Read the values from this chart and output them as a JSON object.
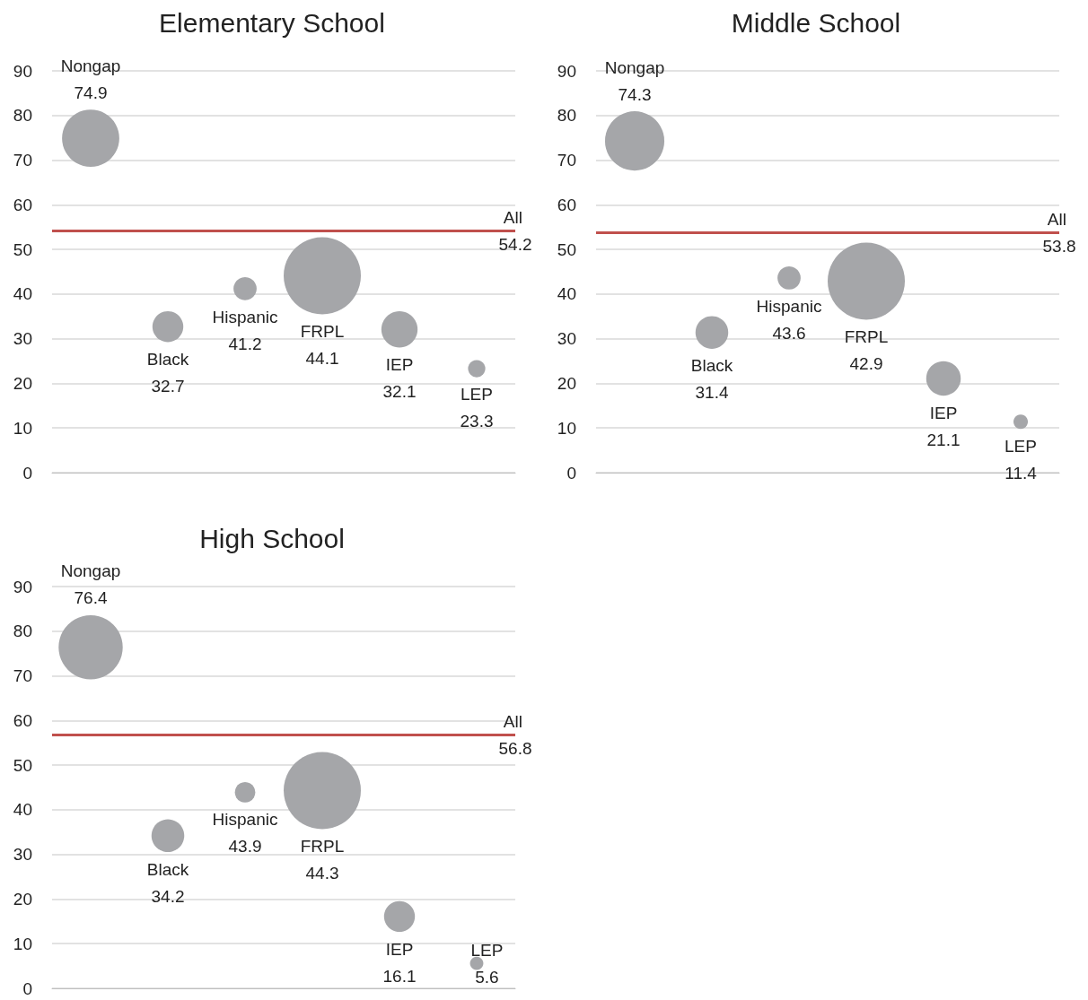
{
  "chart_data": [
    {
      "type": "bubble",
      "title": "Elementary School",
      "categories": [
        "Nongap",
        "Black",
        "Hispanic",
        "FRPL",
        "IEP",
        "LEP"
      ],
      "values": [
        74.9,
        32.7,
        41.2,
        44.1,
        32.1,
        23.3
      ],
      "sizes": [
        0.55,
        0.16,
        0.09,
        1,
        0.22,
        0.05
      ],
      "color": "#a5a6a9",
      "data_labels": true,
      "ylim": [
        0,
        90
      ],
      "yticks": [
        0,
        10,
        20,
        30,
        40,
        50,
        60,
        70,
        80,
        90
      ],
      "grid": "y",
      "tick_labels": "y",
      "ref_lines": [
        {
          "axis": "y",
          "value": 54.2,
          "label": "All 54.2",
          "color": "#c0504d"
        }
      ]
    },
    {
      "type": "bubble",
      "title": "Middle School",
      "categories": [
        "Nongap",
        "Black",
        "Hispanic",
        "FRPL",
        "IEP",
        "LEP"
      ],
      "values": [
        74.3,
        31.4,
        43.6,
        42.9,
        21.1,
        11.4
      ],
      "sizes": [
        0.59,
        0.18,
        0.09,
        1,
        0.2,
        0.035
      ],
      "color": "#a5a6a9",
      "data_labels": true,
      "ylim": [
        0,
        90
      ],
      "yticks": [
        0,
        10,
        20,
        30,
        40,
        50,
        60,
        70,
        80,
        90
      ],
      "grid": "y",
      "tick_labels": "y",
      "ref_lines": [
        {
          "axis": "y",
          "value": 53.8,
          "label": "All 53.8",
          "color": "#c0504d"
        }
      ]
    },
    {
      "type": "bubble",
      "title": "High School",
      "categories": [
        "Nongap",
        "Black",
        "Hispanic",
        "FRPL",
        "IEP",
        "LEP"
      ],
      "values": [
        76.4,
        34.2,
        43.9,
        44.3,
        16.1,
        5.6
      ],
      "sizes": [
        0.69,
        0.18,
        0.07,
        1,
        0.16,
        0.03
      ],
      "color": "#a5a6a9",
      "data_labels": true,
      "ylim": [
        0,
        90
      ],
      "yticks": [
        0,
        10,
        20,
        30,
        40,
        50,
        60,
        70,
        80,
        90
      ],
      "grid": "y",
      "tick_labels": "y",
      "ref_lines": [
        {
          "axis": "y",
          "value": 56.8,
          "label": "All 56.8",
          "color": "#c0504d"
        }
      ]
    }
  ]
}
